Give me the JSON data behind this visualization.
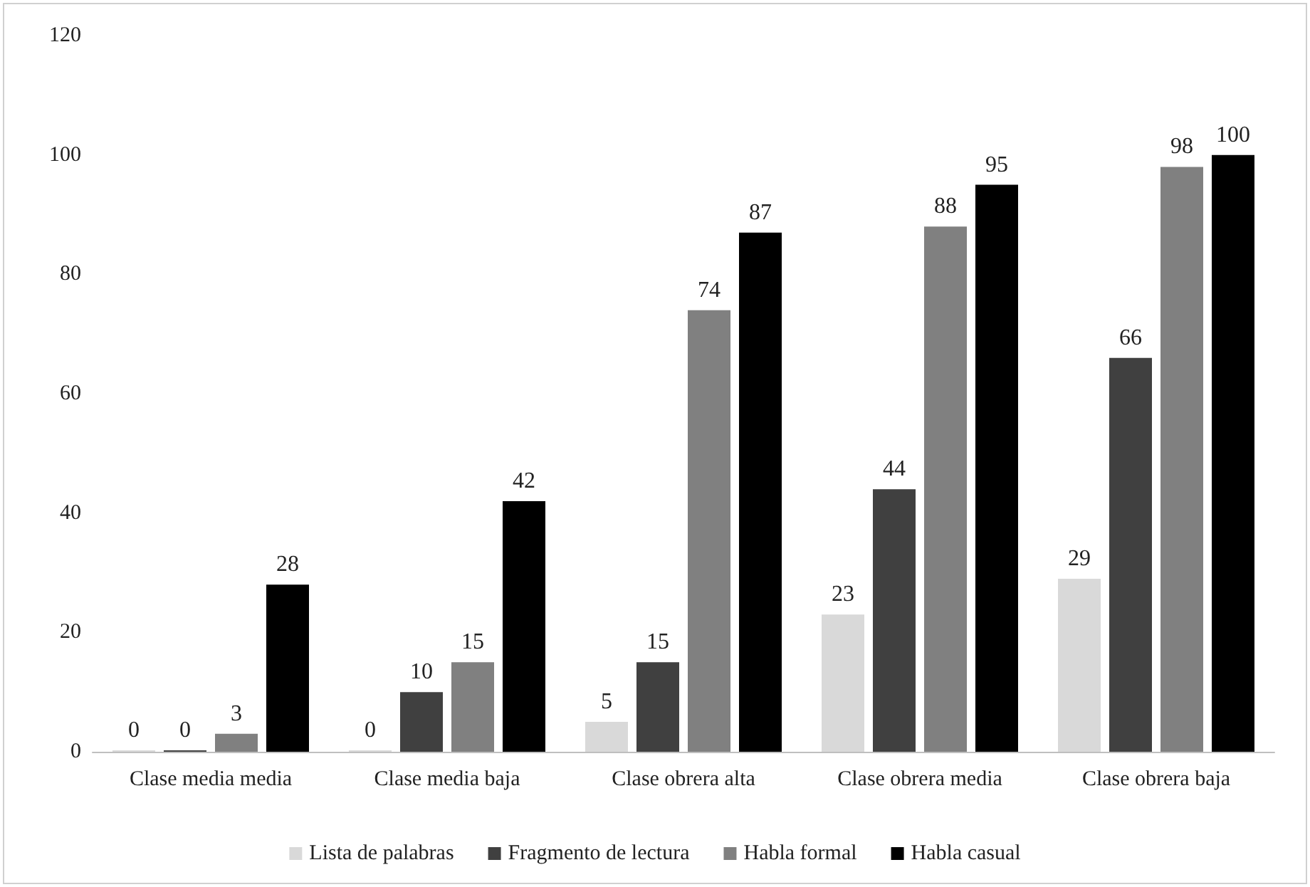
{
  "chart_data": {
    "type": "bar",
    "categories": [
      "Clase media media",
      "Clase media baja",
      "Clase obrera alta",
      "Clase obrera media",
      "Clase obrera baja"
    ],
    "series": [
      {
        "name": "Lista de palabras",
        "color": "#d9d9d9",
        "values": [
          0,
          0,
          5,
          23,
          29
        ]
      },
      {
        "name": "Fragmento de lectura",
        "color": "#404040",
        "values": [
          0,
          10,
          15,
          44,
          66
        ]
      },
      {
        "name": "Habla formal",
        "color": "#808080",
        "values": [
          3,
          15,
          74,
          88,
          98
        ]
      },
      {
        "name": "Habla casual",
        "color": "#000000",
        "values": [
          28,
          42,
          87,
          95,
          100
        ]
      }
    ],
    "ylim": [
      0,
      120
    ],
    "yticks": [
      0,
      20,
      40,
      60,
      80,
      100,
      120
    ],
    "grid": false,
    "legend": "bottom",
    "data_labels": true
  }
}
